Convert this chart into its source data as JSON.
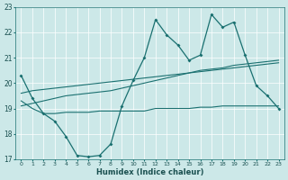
{
  "xlabel": "Humidex (Indice chaleur)",
  "background_color": "#cce8e8",
  "grid_color": "#ffffff",
  "line_color": "#1a7070",
  "xlim": [
    -0.5,
    23.5
  ],
  "ylim": [
    17,
    23
  ],
  "yticks": [
    17,
    18,
    19,
    20,
    21,
    22,
    23
  ],
  "xticks": [
    0,
    1,
    2,
    3,
    4,
    5,
    6,
    7,
    8,
    9,
    10,
    11,
    12,
    13,
    14,
    15,
    16,
    17,
    18,
    19,
    20,
    21,
    22,
    23
  ],
  "line1_y": [
    20.3,
    19.4,
    18.8,
    18.5,
    17.9,
    17.15,
    17.1,
    17.15,
    17.6,
    19.1,
    20.1,
    21.0,
    22.5,
    21.9,
    21.5,
    20.9,
    21.1,
    22.7,
    22.2,
    22.4,
    21.1,
    19.9,
    19.5,
    19.0
  ],
  "line2_y": [
    19.3,
    19.0,
    18.8,
    18.8,
    18.85,
    18.85,
    18.85,
    18.9,
    18.9,
    18.9,
    18.9,
    18.9,
    19.0,
    19.0,
    19.0,
    19.0,
    19.05,
    19.05,
    19.1,
    19.1,
    19.1,
    19.1,
    19.1,
    19.1
  ],
  "line3_y": [
    19.1,
    19.2,
    19.3,
    19.4,
    19.5,
    19.55,
    19.6,
    19.65,
    19.7,
    19.8,
    19.9,
    20.0,
    20.1,
    20.2,
    20.3,
    20.4,
    20.5,
    20.55,
    20.6,
    20.7,
    20.75,
    20.8,
    20.85,
    20.9
  ],
  "line4_y": [
    19.6,
    19.7,
    19.75,
    19.8,
    19.85,
    19.9,
    19.95,
    20.0,
    20.05,
    20.1,
    20.15,
    20.2,
    20.25,
    20.3,
    20.35,
    20.4,
    20.45,
    20.5,
    20.55,
    20.6,
    20.65,
    20.7,
    20.75,
    20.8
  ]
}
